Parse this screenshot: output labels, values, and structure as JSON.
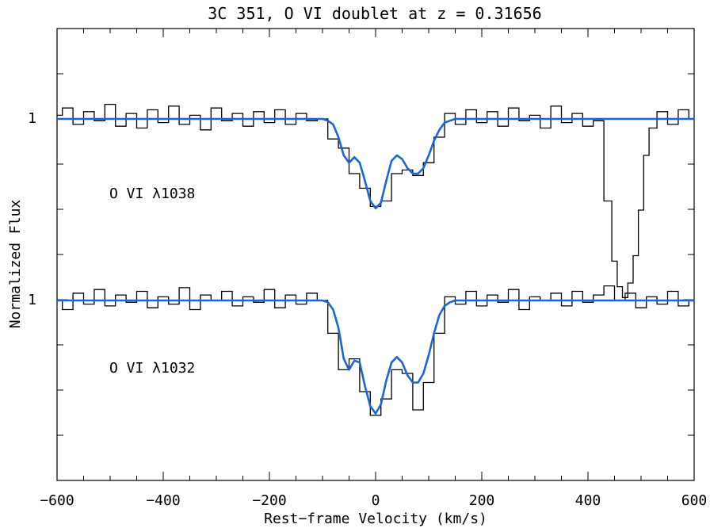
{
  "chart_data": {
    "type": "line",
    "title": "3C 351, O VI doublet at z = 0.31656",
    "xlabel": "Rest−frame Velocity (km/s)",
    "ylabel": "Normalized Flux",
    "xlim": [
      -600,
      600
    ],
    "x_ticks": [
      -600,
      -400,
      -200,
      0,
      200,
      400,
      600
    ],
    "x_tick_labels": [
      "−600",
      "−400",
      "−200",
      "0",
      "200",
      "400",
      "600"
    ],
    "y_tick_labels": [
      "1",
      "1"
    ],
    "grid": false,
    "panels": [
      {
        "label": "O VI λ1038",
        "continuum_level": 1,
        "series": [
          {
            "kind": "data-histogram",
            "color": "#000000",
            "x": [
              -600,
              -580,
              -560,
              -540,
              -520,
              -500,
              -480,
              -460,
              -440,
              -420,
              -400,
              -380,
              -360,
              -340,
              -320,
              -300,
              -280,
              -260,
              -240,
              -220,
              -200,
              -180,
              -160,
              -140,
              -120,
              -100,
              -80,
              -60,
              -40,
              -20,
              0,
              20,
              40,
              60,
              80,
              100,
              120,
              140,
              160,
              180,
              200,
              220,
              240,
              260,
              280,
              300,
              320,
              340,
              360,
              380,
              400,
              420,
              440,
              450,
              460,
              470,
              480,
              490,
              500,
              510,
              520,
              540,
              560,
              580,
              600
            ],
            "y": [
              1.02,
              1.06,
              0.97,
              1.04,
              0.99,
              1.08,
              0.96,
              1.03,
              0.95,
              1.05,
              0.98,
              1.07,
              0.97,
              1.02,
              0.94,
              1.06,
              0.99,
              1.03,
              0.96,
              1.04,
              0.98,
              1.05,
              0.97,
              1.03,
              0.99,
              1.0,
              0.89,
              0.84,
              0.7,
              0.62,
              0.52,
              0.55,
              0.7,
              0.72,
              0.69,
              0.76,
              0.9,
              1.03,
              0.97,
              1.05,
              0.98,
              1.04,
              0.96,
              1.06,
              0.99,
              1.02,
              0.95,
              1.07,
              0.98,
              1.03,
              0.96,
              0.99,
              0.55,
              0.22,
              0.08,
              0.02,
              0.1,
              0.25,
              0.5,
              0.8,
              0.95,
              1.04,
              0.97,
              1.05,
              1.0
            ]
          },
          {
            "kind": "fit",
            "color": "#1a66d6",
            "x": [
              -600,
              -100,
              -90,
              -80,
              -70,
              -60,
              -50,
              -40,
              -30,
              -20,
              -10,
              0,
              10,
              20,
              30,
              40,
              50,
              60,
              70,
              80,
              90,
              100,
              110,
              120,
              130,
              140,
              150,
              600
            ],
            "y": [
              1.0,
              1.0,
              0.99,
              0.97,
              0.9,
              0.8,
              0.76,
              0.79,
              0.76,
              0.66,
              0.55,
              0.51,
              0.54,
              0.66,
              0.77,
              0.8,
              0.78,
              0.73,
              0.7,
              0.7,
              0.73,
              0.8,
              0.88,
              0.94,
              0.98,
              0.99,
              1.0,
              1.0
            ]
          }
        ]
      },
      {
        "label": "O VI λ1032",
        "continuum_level": 1,
        "series": [
          {
            "kind": "data-histogram",
            "color": "#000000",
            "x": [
              -600,
              -580,
              -560,
              -540,
              -520,
              -500,
              -480,
              -460,
              -440,
              -420,
              -400,
              -380,
              -360,
              -340,
              -320,
              -300,
              -280,
              -260,
              -240,
              -220,
              -200,
              -180,
              -160,
              -140,
              -120,
              -100,
              -80,
              -60,
              -40,
              -20,
              0,
              20,
              40,
              60,
              80,
              100,
              120,
              140,
              160,
              180,
              200,
              220,
              240,
              260,
              280,
              300,
              320,
              340,
              360,
              380,
              400,
              420,
              440,
              460,
              480,
              500,
              520,
              540,
              560,
              580,
              600
            ],
            "y": [
              1.0,
              0.95,
              1.04,
              0.98,
              1.06,
              0.97,
              1.03,
              0.99,
              1.05,
              0.96,
              1.02,
              0.98,
              1.07,
              0.95,
              1.03,
              1.0,
              1.05,
              0.97,
              1.02,
              0.99,
              1.06,
              0.96,
              1.03,
              0.98,
              1.04,
              1.0,
              0.82,
              0.62,
              0.68,
              0.5,
              0.37,
              0.46,
              0.62,
              0.6,
              0.4,
              0.55,
              0.82,
              1.02,
              0.98,
              1.05,
              0.97,
              1.03,
              0.99,
              1.06,
              0.95,
              1.02,
              1.0,
              1.04,
              0.97,
              1.05,
              0.99,
              1.03,
              1.08,
              1.0,
              1.04,
              0.96,
              1.02,
              0.98,
              1.05,
              0.97,
              1.0
            ]
          },
          {
            "kind": "fit",
            "color": "#1a66d6",
            "x": [
              -600,
              -100,
              -90,
              -80,
              -70,
              -60,
              -50,
              -40,
              -30,
              -20,
              -10,
              0,
              10,
              20,
              30,
              40,
              50,
              60,
              70,
              80,
              90,
              100,
              110,
              120,
              130,
              140,
              150,
              600
            ],
            "y": [
              1.0,
              1.0,
              0.99,
              0.95,
              0.85,
              0.68,
              0.62,
              0.67,
              0.66,
              0.53,
              0.42,
              0.38,
              0.43,
              0.56,
              0.66,
              0.69,
              0.66,
              0.59,
              0.55,
              0.55,
              0.6,
              0.7,
              0.82,
              0.92,
              0.97,
              0.99,
              1.0,
              1.0
            ]
          }
        ]
      }
    ]
  }
}
